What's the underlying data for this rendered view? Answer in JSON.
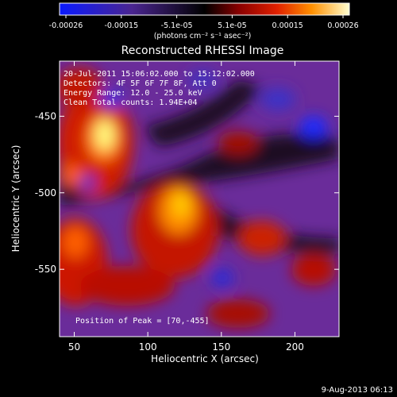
{
  "title": "Reconstructed RHESSI Image",
  "colorbar": {
    "ticks": [
      "-0.00026",
      "-0.00015",
      "-5.1e-05",
      "5.1e-05",
      "0.00015",
      "0.00026"
    ],
    "units": "(photons cm⁻² s⁻¹ asec⁻²)",
    "colors": [
      "#0a1aff",
      "#3a1fa8",
      "#5a2a8a",
      "#000000",
      "#7a0000",
      "#d01a00",
      "#ff6a00",
      "#ffc000",
      "#ffffc8"
    ]
  },
  "info": {
    "line1": "20-Jul-2011 15:06:02.000 to 15:12:02.000",
    "line2": "Detectors: 4F 5F 6F 7F 8F, Att 0",
    "line3": "Energy Range: 12.0 - 25.0 keV",
    "line4": "Clean    Total counts: 1.94E+04"
  },
  "peak": "Position of Peak = [70,-455]",
  "xaxis": {
    "label": "Heliocentric X (arcsec)",
    "ticks": [
      "50",
      "100",
      "150",
      "200"
    ],
    "range": [
      40,
      230
    ]
  },
  "yaxis": {
    "label": "Heliocentric Y (arcsec)",
    "ticks": [
      "-450",
      "-500",
      "-550"
    ],
    "range": [
      -594,
      -414
    ]
  },
  "timestamp": "9-Aug-2013 06:13"
}
